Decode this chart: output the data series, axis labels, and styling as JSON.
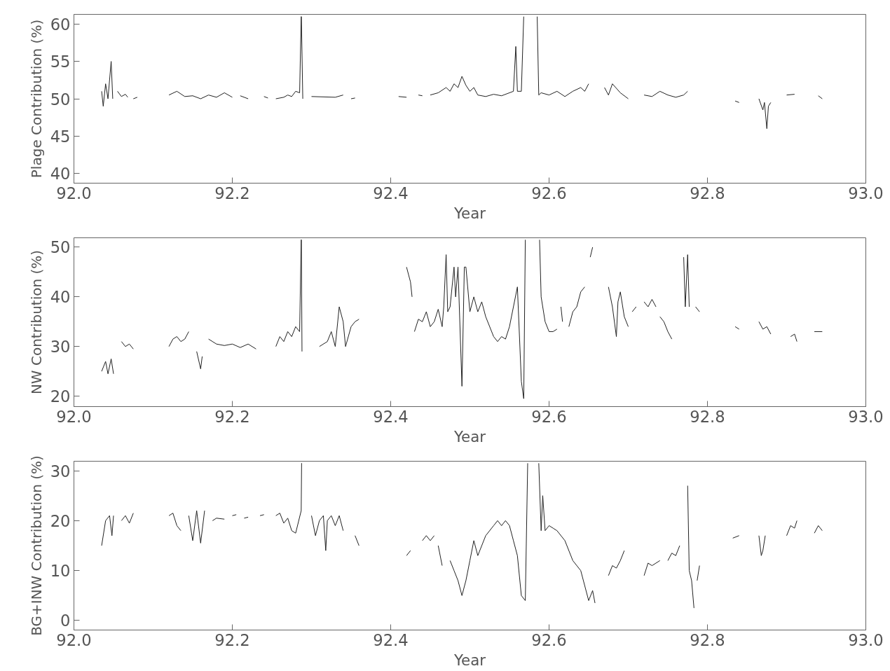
{
  "chart_data": [
    {
      "type": "line",
      "xlabel": "Year",
      "ylabel": "Plage Contribution (%)",
      "xlim": [
        92.0,
        93.0
      ],
      "ylim": [
        38.7,
        61.3
      ],
      "grid": false,
      "line_style": "solid",
      "xticks": [
        {
          "value": 92.0,
          "label": "92.0"
        },
        {
          "value": 92.2,
          "label": "92.2"
        },
        {
          "value": 92.4,
          "label": "92.4"
        },
        {
          "value": 92.6,
          "label": "92.6"
        },
        {
          "value": 92.8,
          "label": "92.8"
        },
        {
          "value": 93.0,
          "label": "93.0"
        }
      ],
      "yticks": [
        40,
        45,
        50,
        55,
        60
      ],
      "series": [
        {
          "color": "#222222",
          "x": [
            92.035,
            92.037,
            92.04,
            92.043,
            92.047,
            92.049,
            92.052,
            92.055,
            92.06,
            92.065,
            92.068,
            92.07,
            92.075,
            92.08,
            92.1,
            92.12,
            92.13,
            92.14,
            92.15,
            92.16,
            92.17,
            92.18,
            92.19,
            92.2,
            92.205,
            92.21,
            92.22,
            92.23,
            92.24,
            92.245,
            92.25,
            92.255,
            92.265,
            92.27,
            92.275,
            92.28,
            92.285,
            92.287,
            92.2872,
            92.289,
            92.295,
            92.3,
            92.33,
            92.34,
            92.345,
            92.35,
            92.355,
            92.38,
            92.41,
            92.42,
            92.43,
            92.435,
            92.44,
            92.445,
            92.45,
            92.46,
            92.47,
            92.475,
            92.48,
            92.485,
            92.49,
            92.495,
            92.5,
            92.505,
            92.51,
            92.52,
            92.53,
            92.54,
            92.55,
            92.555,
            92.558,
            92.56,
            92.565,
            92.568,
            92.575,
            92.585,
            92.587,
            92.59,
            92.6,
            92.61,
            92.62,
            92.63,
            92.64,
            92.645,
            92.65,
            92.66,
            92.67,
            92.675,
            92.68,
            92.69,
            92.7,
            92.705,
            92.72,
            92.73,
            92.74,
            92.75,
            92.76,
            92.77,
            92.775,
            92.8,
            92.835,
            92.84,
            92.85,
            92.865,
            92.87,
            92.872,
            92.875,
            92.877,
            92.88,
            92.89,
            92.9,
            92.91,
            92.92,
            92.94,
            92.945
          ],
          "values": [
            51,
            49,
            52,
            50,
            55,
            50,
            null,
            51,
            50.3,
            50.6,
            50.2,
            null,
            50,
            50.2,
            null,
            50.5,
            51,
            50.3,
            50.4,
            50,
            50.5,
            50.2,
            50.8,
            50.2,
            null,
            50.4,
            50,
            null,
            50.3,
            50.1,
            null,
            50,
            50.2,
            50.5,
            50.3,
            51,
            50.8,
            61,
            61,
            50,
            null,
            50.3,
            50.2,
            50.5,
            null,
            50,
            50.1,
            null,
            50.3,
            50.2,
            null,
            50.5,
            50.4,
            null,
            50.5,
            50.8,
            51.5,
            51,
            52,
            51.5,
            53,
            51.8,
            51,
            51.5,
            50.5,
            50.3,
            50.6,
            50.4,
            50.8,
            51,
            57,
            51,
            51,
            61,
            null,
            61,
            50.5,
            50.8,
            50.5,
            51,
            50.3,
            51,
            51.5,
            51,
            52,
            null,
            51.5,
            50.5,
            52,
            50.8,
            50,
            null,
            50.5,
            50.3,
            51,
            50.5,
            50.2,
            50.5,
            51,
            null,
            49.7,
            49.5,
            null,
            50,
            48.5,
            49.5,
            46,
            49,
            49.5,
            null,
            50.5,
            50.6,
            null,
            50.4,
            50
          ]
        }
      ]
    },
    {
      "type": "line",
      "xlabel": "Year",
      "ylabel": "NW Contribution (%)",
      "xlim": [
        92.0,
        93.0
      ],
      "ylim": [
        17.9,
        51.9
      ],
      "grid": false,
      "line_style": "solid",
      "xticks": [
        {
          "value": 92.0,
          "label": "92.0"
        },
        {
          "value": 92.2,
          "label": "92.2"
        },
        {
          "value": 92.4,
          "label": "92.4"
        },
        {
          "value": 92.6,
          "label": "92.6"
        },
        {
          "value": 92.8,
          "label": "92.8"
        },
        {
          "value": 93.0,
          "label": "93.0"
        }
      ],
      "yticks": [
        20,
        30,
        40,
        50
      ],
      "series": [
        {
          "color": "#222222",
          "x": [
            92.035,
            92.04,
            92.043,
            92.047,
            92.05,
            92.055,
            92.06,
            92.065,
            92.07,
            92.075,
            92.1,
            92.12,
            92.125,
            92.13,
            92.135,
            92.14,
            92.145,
            92.15,
            92.155,
            92.16,
            92.162,
            92.165,
            92.17,
            92.18,
            92.19,
            92.2,
            92.21,
            92.22,
            92.23,
            92.24,
            92.255,
            92.26,
            92.265,
            92.27,
            92.275,
            92.28,
            92.285,
            92.287,
            92.2872,
            92.288,
            92.3,
            92.31,
            92.32,
            92.325,
            92.33,
            92.335,
            92.34,
            92.343,
            92.35,
            92.355,
            92.36,
            92.4,
            92.42,
            92.425,
            92.427,
            92.428,
            92.43,
            92.435,
            92.44,
            92.445,
            92.45,
            92.455,
            92.46,
            92.465,
            92.467,
            92.47,
            92.472,
            92.475,
            92.48,
            92.482,
            92.485,
            92.49,
            92.493,
            92.495,
            92.5,
            92.505,
            92.51,
            92.515,
            92.52,
            92.53,
            92.535,
            92.54,
            92.545,
            92.55,
            92.56,
            92.565,
            92.568,
            92.57,
            92.58,
            92.588,
            92.59,
            92.595,
            92.6,
            92.605,
            92.61,
            92.612,
            92.615,
            92.617,
            92.62,
            92.625,
            92.63,
            92.635,
            92.64,
            92.645,
            92.65,
            92.652,
            92.655,
            92.66,
            92.675,
            92.68,
            92.685,
            92.687,
            92.69,
            92.695,
            92.7,
            92.702,
            92.705,
            92.71,
            92.715,
            92.72,
            92.725,
            92.73,
            92.735,
            92.738,
            92.74,
            92.745,
            92.75,
            92.755,
            92.76,
            92.77,
            92.772,
            92.775,
            92.777,
            92.78,
            92.785,
            92.79,
            92.8,
            92.835,
            92.84,
            92.85,
            92.865,
            92.87,
            92.875,
            92.88,
            92.89,
            92.905,
            92.91,
            92.913,
            92.92,
            92.935,
            92.945
          ],
          "values": [
            25,
            27,
            24.5,
            27.5,
            24.5,
            null,
            31,
            30,
            30.5,
            29.5,
            null,
            30,
            31.5,
            32,
            31,
            31.5,
            33,
            null,
            29,
            25.5,
            28,
            null,
            31.5,
            30.5,
            30.2,
            30.5,
            29.8,
            30.5,
            29.5,
            null,
            30,
            32,
            31,
            33,
            32,
            34,
            33,
            51.5,
            51.5,
            29,
            null,
            30,
            31,
            33,
            30,
            38,
            35,
            30,
            34,
            35,
            35.5,
            null,
            46,
            43,
            40,
            null,
            33,
            35.5,
            35,
            37,
            34,
            35,
            37.5,
            34,
            38,
            48.5,
            37,
            38,
            46,
            40,
            46,
            22,
            46,
            46,
            37,
            40,
            37,
            39,
            36,
            32,
            31,
            32,
            31.5,
            34,
            42,
            23,
            19.5,
            51.5,
            null,
            51.5,
            40,
            35,
            33,
            33,
            33.5,
            null,
            38,
            35,
            null,
            34,
            37,
            38,
            41,
            42,
            null,
            48,
            50,
            null,
            42,
            38,
            32,
            39,
            41,
            36,
            34,
            null,
            37,
            38,
            null,
            39,
            38,
            39.5,
            38,
            null,
            36,
            35,
            33,
            31.5,
            null,
            48,
            38,
            48.5,
            38,
            null,
            38,
            37,
            null,
            34,
            33.5,
            null,
            35,
            33.5,
            34,
            32.5,
            null,
            32,
            32.5,
            31,
            null,
            33,
            33
          ]
        }
      ]
    },
    {
      "type": "line",
      "xlabel": "Year",
      "ylabel": "BG+INW Contribution (%)",
      "xlim": [
        92.0,
        93.0
      ],
      "ylim": [
        -1.9,
        31.9
      ],
      "grid": false,
      "line_style": "solid",
      "xticks": [
        {
          "value": 92.0,
          "label": "92.0"
        },
        {
          "value": 92.2,
          "label": "92.2"
        },
        {
          "value": 92.4,
          "label": "92.4"
        },
        {
          "value": 92.6,
          "label": "92.6"
        },
        {
          "value": 92.8,
          "label": "92.8"
        },
        {
          "value": 93.0,
          "label": "93.0"
        }
      ],
      "yticks": [
        0,
        10,
        20,
        30
      ],
      "series": [
        {
          "color": "#222222",
          "x": [
            92.035,
            92.04,
            92.045,
            92.048,
            92.05,
            92.055,
            92.06,
            92.065,
            92.07,
            92.075,
            92.1,
            92.12,
            92.125,
            92.13,
            92.135,
            92.14,
            92.145,
            92.15,
            92.155,
            92.16,
            92.165,
            92.17,
            92.175,
            92.18,
            92.19,
            92.195,
            92.2,
            92.205,
            92.21,
            92.215,
            92.22,
            92.23,
            92.235,
            92.24,
            92.25,
            92.255,
            92.26,
            92.265,
            92.27,
            92.275,
            92.28,
            92.287,
            92.2875,
            92.2878,
            92.29,
            92.3,
            92.305,
            92.31,
            92.315,
            92.318,
            92.32,
            92.325,
            92.33,
            92.335,
            92.34,
            92.35,
            92.355,
            92.36,
            92.4,
            92.42,
            92.425,
            92.43,
            92.44,
            92.445,
            92.45,
            92.455,
            92.457,
            92.46,
            92.465,
            92.47,
            92.475,
            92.48,
            92.485,
            92.49,
            92.495,
            92.5,
            92.505,
            92.51,
            92.515,
            92.52,
            92.53,
            92.535,
            92.54,
            92.545,
            92.55,
            92.555,
            92.56,
            92.565,
            92.57,
            92.573,
            92.58,
            92.587,
            92.59,
            92.592,
            92.595,
            92.6,
            92.605,
            92.61,
            92.62,
            92.625,
            92.63,
            92.64,
            92.645,
            92.65,
            92.655,
            92.658,
            92.665,
            92.675,
            92.68,
            92.685,
            92.69,
            92.695,
            92.7,
            92.72,
            92.725,
            92.73,
            92.74,
            92.745,
            92.75,
            92.755,
            92.76,
            92.765,
            92.77,
            92.775,
            92.777,
            92.78,
            92.783,
            92.785,
            92.787,
            92.79,
            92.8,
            92.832,
            92.84,
            92.85,
            92.865,
            92.868,
            92.87,
            92.873,
            92.89,
            92.9,
            92.905,
            92.91,
            92.913,
            92.92,
            92.935,
            92.94,
            92.945
          ],
          "values": [
            15,
            20,
            21,
            17,
            21,
            null,
            20,
            21,
            19.5,
            21.5,
            null,
            21,
            21.5,
            19,
            18,
            null,
            21,
            16,
            22,
            15.5,
            22,
            null,
            20,
            20.5,
            20.3,
            null,
            21,
            21.2,
            null,
            20.5,
            20.7,
            null,
            21,
            21.2,
            null,
            21,
            21.5,
            19.5,
            20.5,
            18,
            17.5,
            22,
            31.5,
            31.5,
            null,
            21,
            17,
            20,
            21,
            14,
            20,
            21,
            19,
            21,
            18,
            null,
            17,
            15,
            null,
            13,
            14,
            null,
            16,
            17,
            16,
            17,
            null,
            15,
            11,
            null,
            12,
            10,
            8,
            5,
            8,
            12,
            16,
            13,
            15,
            17,
            19,
            20,
            19,
            20,
            19,
            16,
            13,
            5,
            4,
            31.5,
            null,
            31.5,
            18,
            25,
            18,
            19,
            18.5,
            18,
            16,
            14,
            12,
            10,
            7,
            4,
            6,
            3.5,
            null,
            9,
            11,
            10.5,
            12,
            14,
            null,
            9,
            11.5,
            11,
            12,
            null,
            12,
            13.5,
            13,
            15,
            null,
            27,
            10,
            8,
            2.5,
            null,
            8,
            11,
            null,
            16.5,
            17,
            null,
            17,
            13,
            14,
            17,
            null,
            17,
            19,
            18.5,
            20,
            null,
            17.5,
            19,
            18
          ]
        }
      ]
    }
  ]
}
